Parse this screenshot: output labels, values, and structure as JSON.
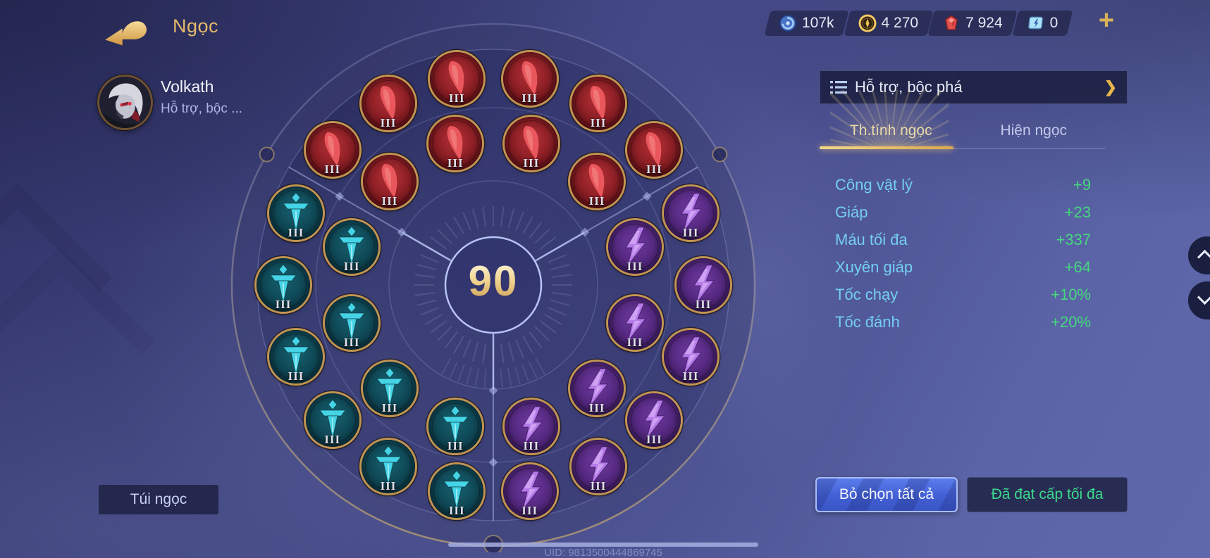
{
  "header": {
    "title": "Ngọc",
    "add_label": "+"
  },
  "currencies": [
    {
      "icon": "blue-coin-icon",
      "value": "107k"
    },
    {
      "icon": "gold-coin-icon",
      "value": "4 270"
    },
    {
      "icon": "red-gem-icon",
      "value": "7 924"
    },
    {
      "icon": "ticket-icon",
      "value": "0"
    }
  ],
  "player": {
    "name": "Volkath",
    "role": "Hỗ trợ, bộc ..."
  },
  "wheel": {
    "center_level": "90",
    "runes": [
      {
        "type": "red",
        "ring": "outer",
        "angle": 140,
        "level": "III"
      },
      {
        "type": "red",
        "ring": "outer",
        "angle": 120,
        "level": "III"
      },
      {
        "type": "red",
        "ring": "outer",
        "angle": 100,
        "level": "III"
      },
      {
        "type": "red",
        "ring": "outer",
        "angle": 80,
        "level": "III"
      },
      {
        "type": "red",
        "ring": "outer",
        "angle": 60,
        "level": "III"
      },
      {
        "type": "red",
        "ring": "outer",
        "angle": 40,
        "level": "III"
      },
      {
        "type": "red",
        "ring": "inner",
        "angle": 135,
        "level": "III"
      },
      {
        "type": "red",
        "ring": "inner",
        "angle": 105,
        "level": "III"
      },
      {
        "type": "red",
        "ring": "inner",
        "angle": 75,
        "level": "III"
      },
      {
        "type": "red",
        "ring": "inner",
        "angle": 45,
        "level": "III"
      },
      {
        "type": "teal",
        "ring": "outer",
        "angle": 160,
        "level": "III"
      },
      {
        "type": "teal",
        "ring": "outer",
        "angle": 180,
        "level": "III"
      },
      {
        "type": "teal",
        "ring": "outer",
        "angle": 200,
        "level": "III"
      },
      {
        "type": "teal",
        "ring": "outer",
        "angle": 220,
        "level": "III"
      },
      {
        "type": "teal",
        "ring": "outer",
        "angle": 240,
        "level": "III"
      },
      {
        "type": "teal",
        "ring": "outer",
        "angle": 260,
        "level": "III"
      },
      {
        "type": "teal",
        "ring": "inner",
        "angle": 165,
        "level": "III"
      },
      {
        "type": "teal",
        "ring": "inner",
        "angle": 195,
        "level": "III"
      },
      {
        "type": "teal",
        "ring": "inner",
        "angle": 225,
        "level": "III"
      },
      {
        "type": "teal",
        "ring": "inner",
        "angle": 255,
        "level": "III"
      },
      {
        "type": "purple",
        "ring": "outer",
        "angle": 280,
        "level": "III"
      },
      {
        "type": "purple",
        "ring": "outer",
        "angle": 300,
        "level": "III"
      },
      {
        "type": "purple",
        "ring": "outer",
        "angle": 320,
        "level": "III"
      },
      {
        "type": "purple",
        "ring": "outer",
        "angle": 340,
        "level": "III"
      },
      {
        "type": "purple",
        "ring": "outer",
        "angle": 0,
        "level": "III"
      },
      {
        "type": "purple",
        "ring": "outer",
        "angle": 20,
        "level": "III"
      },
      {
        "type": "purple",
        "ring": "inner",
        "angle": 285,
        "level": "III"
      },
      {
        "type": "purple",
        "ring": "inner",
        "angle": 315,
        "level": "III"
      },
      {
        "type": "purple",
        "ring": "inner",
        "angle": 345,
        "level": "III"
      },
      {
        "type": "purple",
        "ring": "inner",
        "angle": 15,
        "level": "III"
      }
    ]
  },
  "panel": {
    "preset": {
      "label": "Hỗ trợ, bộc phá",
      "chevron": "❯"
    },
    "tabs": [
      {
        "label": "Th.tính ngọc",
        "active": true
      },
      {
        "label": "Hiện ngọc",
        "active": false
      }
    ],
    "stats": [
      {
        "label": "Công vật lý",
        "value": "+9"
      },
      {
        "label": "Giáp",
        "value": "+23"
      },
      {
        "label": "Máu tối đa",
        "value": "+337"
      },
      {
        "label": "Xuyên giáp",
        "value": "+64"
      },
      {
        "label": "Tốc chạy",
        "value": "+10%"
      },
      {
        "label": "Tốc đánh",
        "value": "+20%"
      }
    ],
    "deselect_label": "Bỏ chọn tất cả",
    "max_label": "Đã đạt cấp tối đa"
  },
  "bag_button_label": "Túi ngọc",
  "footer": {
    "uid": "UID: 9813500444869745"
  },
  "colors": {
    "accent_gold": "#e3b96b",
    "tab_active": "#ead9a6",
    "stat_label": "#72cdf2",
    "stat_value": "#45d67f",
    "rune_red": "#b02a2e",
    "rune_teal": "#0f5260",
    "rune_purple": "#633092",
    "button_blue": "#4763d6"
  }
}
